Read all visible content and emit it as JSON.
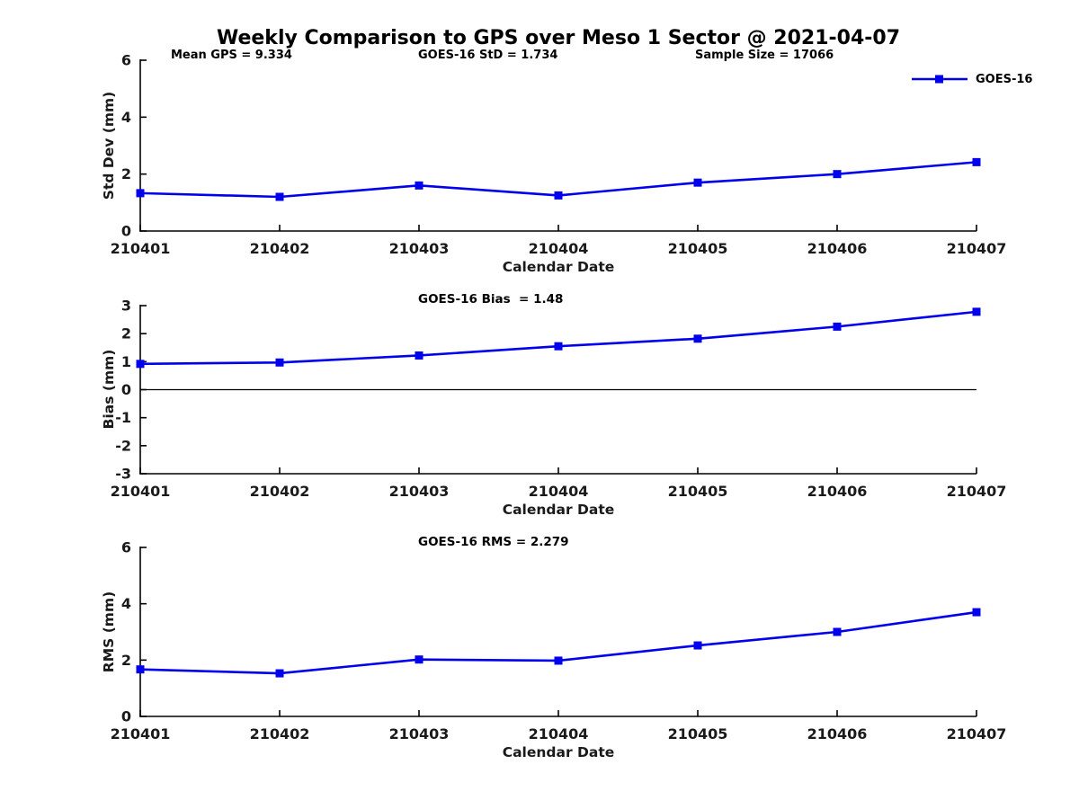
{
  "page": {
    "title": "Weekly Comparison to GPS over Meso 1 Sector @ 2021-04-07",
    "background": "#ffffff"
  },
  "chart_data": [
    {
      "type": "line",
      "title": "",
      "annotations": [
        "Mean GPS = 9.334",
        "GOES-16 StD = 1.734",
        "Sample Size = 17066"
      ],
      "xlabel": "Calendar Date",
      "ylabel": "Std Dev (mm)",
      "categories": [
        "210401",
        "210402",
        "210403",
        "210404",
        "210405",
        "210406",
        "210407"
      ],
      "series": [
        {
          "name": "GOES-16",
          "values": [
            1.33,
            1.2,
            1.6,
            1.25,
            1.7,
            2.0,
            2.42
          ]
        }
      ],
      "ylim": [
        0,
        6
      ],
      "yticks": [
        0,
        2,
        4,
        6
      ],
      "line_color": "#0000EE",
      "marker": "filled-square",
      "grid": false,
      "zero_line": false,
      "legend_position": "top-right"
    },
    {
      "type": "line",
      "title": "GOES-16 Bias  = 1.48",
      "xlabel": "Calendar Date",
      "ylabel": "Bias (mm)",
      "categories": [
        "210401",
        "210402",
        "210403",
        "210404",
        "210405",
        "210406",
        "210407"
      ],
      "series": [
        {
          "name": "GOES-16",
          "values": [
            0.92,
            0.97,
            1.22,
            1.55,
            1.82,
            2.25,
            2.78
          ]
        }
      ],
      "ylim": [
        -3,
        3
      ],
      "yticks": [
        -3,
        -2,
        -1,
        0,
        1,
        2,
        3
      ],
      "line_color": "#0000EE",
      "marker": "filled-square",
      "grid": false,
      "zero_line": true,
      "legend_position": "none"
    },
    {
      "type": "line",
      "title": "GOES-16 RMS = 2.279",
      "xlabel": "Calendar Date",
      "ylabel": "RMS (mm)",
      "categories": [
        "210401",
        "210402",
        "210403",
        "210404",
        "210405",
        "210406",
        "210407"
      ],
      "series": [
        {
          "name": "GOES-16",
          "values": [
            1.67,
            1.53,
            2.02,
            1.98,
            2.52,
            3.0,
            3.7
          ]
        }
      ],
      "ylim": [
        0,
        6
      ],
      "yticks": [
        0,
        2,
        4,
        6
      ],
      "line_color": "#0000EE",
      "marker": "filled-square",
      "grid": false,
      "zero_line": false,
      "legend_position": "none"
    }
  ]
}
